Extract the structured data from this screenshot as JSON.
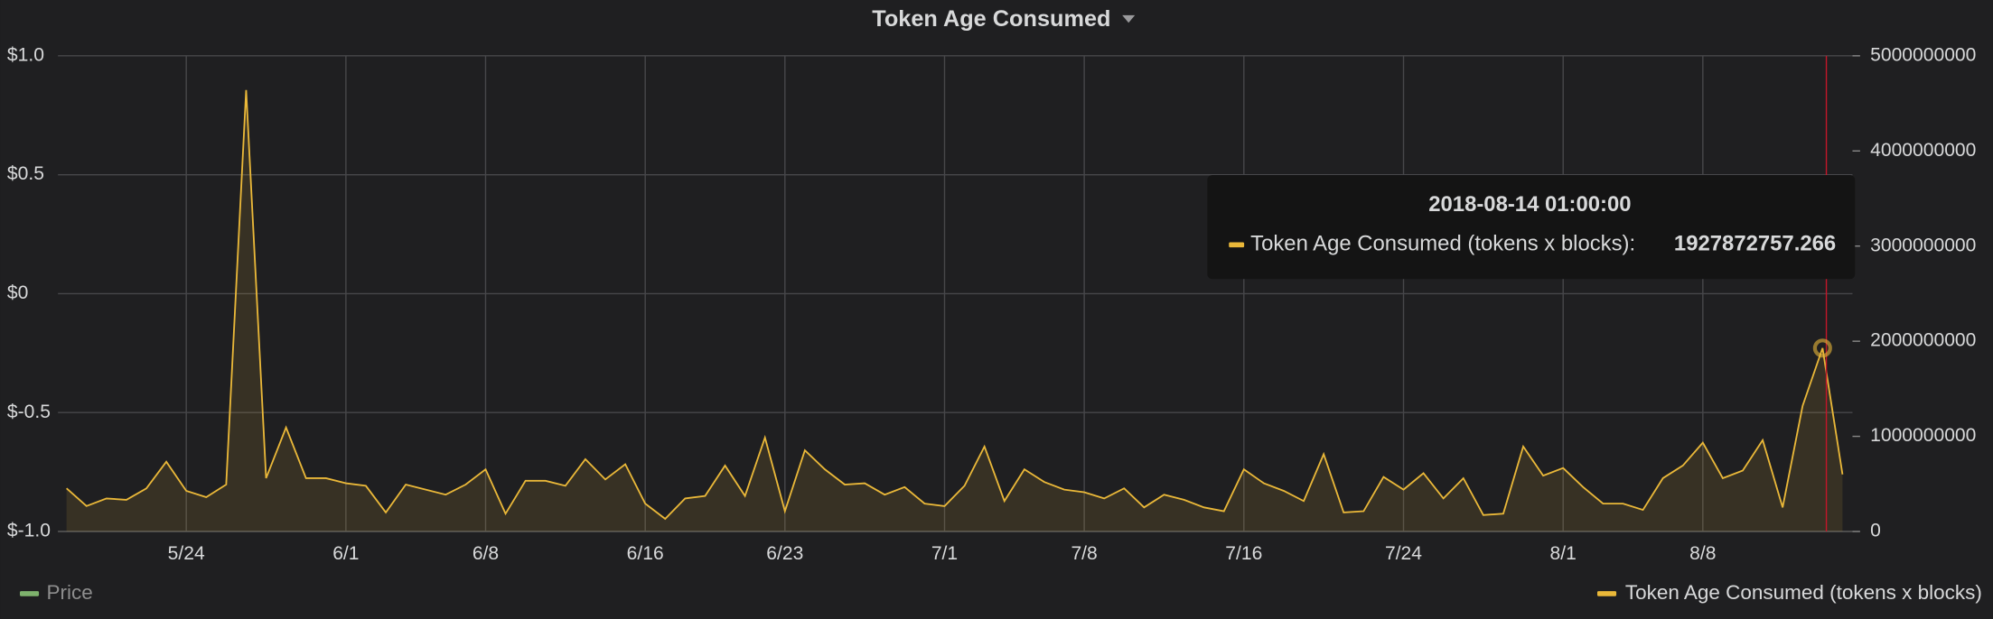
{
  "chart_data": {
    "type": "line",
    "title": "Token Age Consumed",
    "x": [
      138,
      139,
      140,
      141,
      142,
      143,
      144,
      145,
      146,
      147,
      148,
      149,
      150,
      151,
      152,
      153,
      154,
      155,
      156,
      157,
      158,
      159,
      160,
      161,
      162,
      163,
      164,
      165,
      166,
      167,
      168,
      169,
      170,
      171,
      172,
      173,
      174,
      175,
      176,
      177,
      178,
      179,
      180,
      181,
      182,
      183,
      184,
      185,
      186,
      187,
      188,
      189,
      190,
      191,
      192,
      193,
      194,
      195,
      196,
      197,
      198,
      199,
      200,
      201,
      202,
      203,
      204,
      205,
      206,
      207,
      208,
      209,
      210,
      211,
      212,
      213,
      214,
      215,
      216,
      217,
      218,
      219,
      220,
      221,
      222,
      223,
      224,
      225,
      226,
      227
    ],
    "xlim": [
      137.57,
      227.5
    ],
    "xticks": [
      {
        "value": 144,
        "label": "5/24"
      },
      {
        "value": 152,
        "label": "6/1"
      },
      {
        "value": 159,
        "label": "6/8"
      },
      {
        "value": 167,
        "label": "6/16"
      },
      {
        "value": 174,
        "label": "6/23"
      },
      {
        "value": 182,
        "label": "7/1"
      },
      {
        "value": 189,
        "label": "7/8"
      },
      {
        "value": 197,
        "label": "7/16"
      },
      {
        "value": 205,
        "label": "7/24"
      },
      {
        "value": 213,
        "label": "8/1"
      },
      {
        "value": 220,
        "label": "8/8"
      }
    ],
    "ylim": [
      -1,
      1
    ],
    "yticks": [
      {
        "value": 1,
        "label": "$1.0"
      },
      {
        "value": 0.5,
        "label": "$0.5"
      },
      {
        "value": 0,
        "label": "$0"
      },
      {
        "value": -0.5,
        "label": "$-0.5"
      },
      {
        "value": -1,
        "label": "$-1.0"
      }
    ],
    "y2lim": [
      0,
      5000000000
    ],
    "y2ticks": [
      0,
      1000000000,
      2000000000,
      3000000000,
      4000000000,
      5000000000
    ],
    "grid": true,
    "series": [
      {
        "name": "Price",
        "color": "#7eb26d",
        "values": [
          null,
          null,
          null,
          null,
          null,
          null,
          null,
          null,
          null,
          null,
          null,
          null,
          null,
          null,
          null,
          null,
          null,
          null,
          null,
          null,
          null,
          null,
          null,
          null,
          null,
          null,
          null,
          null,
          null,
          null,
          null,
          null,
          null,
          null,
          null,
          null,
          null,
          null,
          null,
          null,
          null,
          null,
          null,
          null,
          null,
          null,
          null,
          null,
          null,
          null,
          null,
          null,
          null,
          null,
          null,
          null,
          null,
          null,
          null,
          null,
          null,
          null,
          null,
          null,
          null,
          null,
          null,
          null,
          null,
          null,
          null,
          null,
          null,
          null,
          null,
          null,
          null,
          null,
          null,
          null,
          null,
          null,
          null,
          null,
          null,
          null,
          null,
          null,
          null,
          null
        ]
      },
      {
        "name": "Token Age Consumed (tokens x blocks)",
        "color": "#eab839",
        "axis": "y2",
        "values": [
          453000000,
          267000000,
          347000000,
          333000000,
          453000000,
          733000000,
          427000000,
          360000000,
          493000000,
          4640000000,
          560000000,
          1093000000,
          560000000,
          560000000,
          507000000,
          480000000,
          200000000,
          493000000,
          440000000,
          387000000,
          493000000,
          653000000,
          187000000,
          533000000,
          533000000,
          480000000,
          760000000,
          547000000,
          707000000,
          293000000,
          133000000,
          347000000,
          373000000,
          693000000,
          373000000,
          987000000,
          213000000,
          853000000,
          653000000,
          493000000,
          507000000,
          387000000,
          467000000,
          293000000,
          267000000,
          480000000,
          893000000,
          320000000,
          653000000,
          520000000,
          440000000,
          413000000,
          347000000,
          453000000,
          253000000,
          387000000,
          333000000,
          253000000,
          213000000,
          653000000,
          507000000,
          427000000,
          320000000,
          813000000,
          200000000,
          213000000,
          573000000,
          440000000,
          613000000,
          347000000,
          560000000,
          173000000,
          187000000,
          893000000,
          587000000,
          667000000,
          467000000,
          293000000,
          293000000,
          227000000,
          560000000,
          693000000,
          933000000,
          560000000,
          640000000,
          960000000,
          253000000,
          1320000000,
          1927872757.266,
          600000000
        ]
      }
    ],
    "tooltip": {
      "time": "2018-08-14 01:00:00",
      "label": "Token Age Consumed (tokens x blocks):"
    }
  }
}
